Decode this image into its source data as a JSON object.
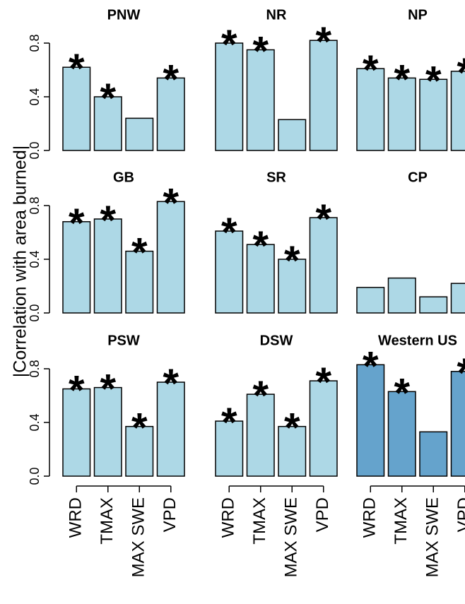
{
  "ylabel": "|Correlation with area burned|",
  "chart_data": [
    {
      "type": "bar",
      "title": "PNW",
      "values": [
        0.62,
        0.4,
        0.24,
        0.54
      ],
      "markers": [
        "*",
        "*",
        null,
        "*"
      ],
      "color": "#add8e6",
      "ylim": [
        0,
        0.86
      ],
      "yticks": [
        {
          "value": 0,
          "label": "0.0"
        },
        0.4,
        0.8
      ]
    },
    {
      "type": "bar",
      "title": "NR",
      "values": [
        0.8,
        0.75,
        0.23,
        0.82
      ],
      "markers": [
        "*",
        "*",
        null,
        "*"
      ],
      "color": "#add8e6",
      "ylim": [
        0,
        0.86
      ]
    },
    {
      "type": "bar",
      "title": "NP",
      "values": [
        0.61,
        0.54,
        0.53,
        0.59
      ],
      "markers": [
        "*",
        "*",
        "*",
        "*"
      ],
      "color": "#add8e6",
      "ylim": [
        0,
        0.86
      ]
    },
    {
      "type": "bar",
      "title": "GB",
      "values": [
        0.68,
        0.7,
        0.46,
        0.83
      ],
      "markers": [
        "*",
        "*",
        "*",
        "*"
      ],
      "color": "#add8e6",
      "ylim": [
        0,
        0.86
      ],
      "yticks": [
        {
          "value": 0,
          "label": "0.0"
        },
        0.4,
        0.8
      ]
    },
    {
      "type": "bar",
      "title": "SR",
      "values": [
        0.61,
        0.51,
        0.4,
        0.71
      ],
      "markers": [
        "*",
        "*",
        "*",
        "*"
      ],
      "color": "#add8e6",
      "ylim": [
        0,
        0.86
      ]
    },
    {
      "type": "bar",
      "title": "CP",
      "values": [
        0.19,
        0.26,
        0.12,
        0.22
      ],
      "color": "#add8e6",
      "ylim": [
        0,
        0.86
      ]
    },
    {
      "type": "bar",
      "title": "PSW",
      "categories": [
        "WRD",
        "TMAX",
        "MAX SWE",
        "VPD"
      ],
      "values": [
        0.65,
        0.66,
        0.37,
        0.7
      ],
      "markers": [
        "*",
        "*",
        "*",
        "*"
      ],
      "color": "#add8e6",
      "ylim": [
        0,
        0.86
      ],
      "yticks": [
        {
          "value": 0,
          "label": "0.0"
        },
        0.4,
        0.8
      ]
    },
    {
      "type": "bar",
      "title": "DSW",
      "categories": [
        "WRD",
        "TMAX",
        "MAX SWE",
        "VPD"
      ],
      "values": [
        0.41,
        0.61,
        0.37,
        0.71
      ],
      "markers": [
        "*",
        "*",
        "*",
        "*"
      ],
      "color": "#add8e6",
      "ylim": [
        0,
        0.86
      ]
    },
    {
      "type": "bar",
      "title": "Western US",
      "categories": [
        "WRD",
        "TMAX",
        "MAX SWE",
        "VPD"
      ],
      "values": [
        0.83,
        0.63,
        0.33,
        0.78
      ],
      "markers": [
        "*",
        "*",
        null,
        "*"
      ],
      "color": "#65a3cc",
      "ylim": [
        0,
        0.86
      ]
    }
  ]
}
